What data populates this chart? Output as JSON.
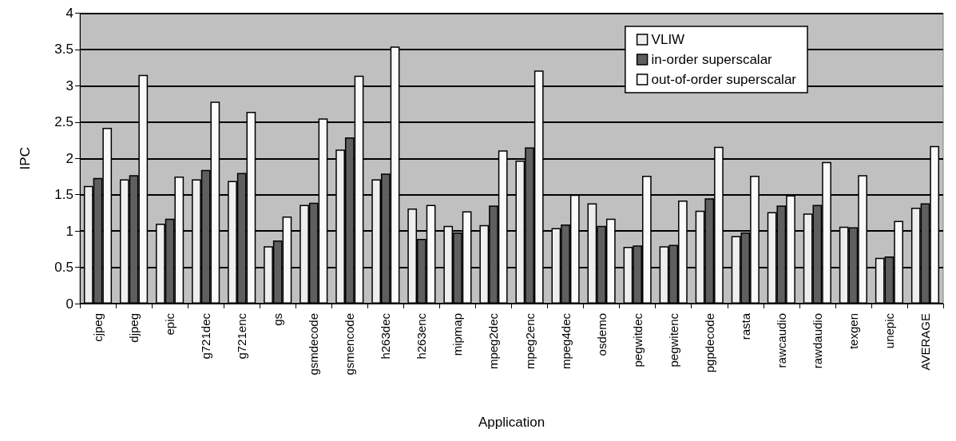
{
  "chart_data": {
    "type": "bar",
    "xlabel": "Application",
    "ylabel": "IPC",
    "categories": [
      "cjpeg",
      "djpeg",
      "epic",
      "g721dec",
      "g721enc",
      "gs",
      "gsmdecode",
      "gsmencode",
      "h263dec",
      "h263enc",
      "mipmap",
      "mpeg2dec",
      "mpeg2enc",
      "mpeg4dec",
      "osdemo",
      "pegwitdec",
      "pegwitenc",
      "pgpdecode",
      "rasta",
      "rawcaudio",
      "rawdaudio",
      "texgen",
      "unepic",
      "AVERAGE"
    ],
    "series": [
      {
        "name": "VLIW",
        "color": "#eeeeee",
        "values": [
          1.62,
          1.71,
          1.1,
          1.71,
          1.69,
          0.79,
          1.36,
          2.12,
          1.71,
          1.31,
          1.07,
          1.08,
          1.97,
          1.04,
          1.38,
          0.78,
          0.79,
          1.28,
          0.93,
          1.26,
          1.24,
          1.06,
          0.63,
          1.32
        ]
      },
      {
        "name": "in-order superscalar",
        "color": "#5f5f5f",
        "values": [
          1.73,
          1.77,
          1.17,
          1.84,
          1.8,
          0.87,
          1.39,
          2.29,
          1.79,
          0.89,
          0.98,
          1.35,
          2.15,
          1.09,
          1.07,
          0.8,
          0.81,
          1.45,
          0.98,
          1.35,
          1.36,
          1.05,
          0.65,
          1.38
        ]
      },
      {
        "name": "out-of-order superscalar",
        "color": "#fafafa",
        "values": [
          2.42,
          3.15,
          1.75,
          2.78,
          2.64,
          1.2,
          2.55,
          3.14,
          3.54,
          1.36,
          1.27,
          2.11,
          3.21,
          1.5,
          1.17,
          1.76,
          1.42,
          2.16,
          1.76,
          1.49,
          1.95,
          1.77,
          1.14,
          2.17
        ]
      }
    ],
    "ylim": [
      0,
      4
    ],
    "yticks": [
      0,
      0.5,
      1,
      1.5,
      2,
      2.5,
      3,
      3.5,
      4
    ],
    "grid": "y",
    "legend": "top right"
  }
}
